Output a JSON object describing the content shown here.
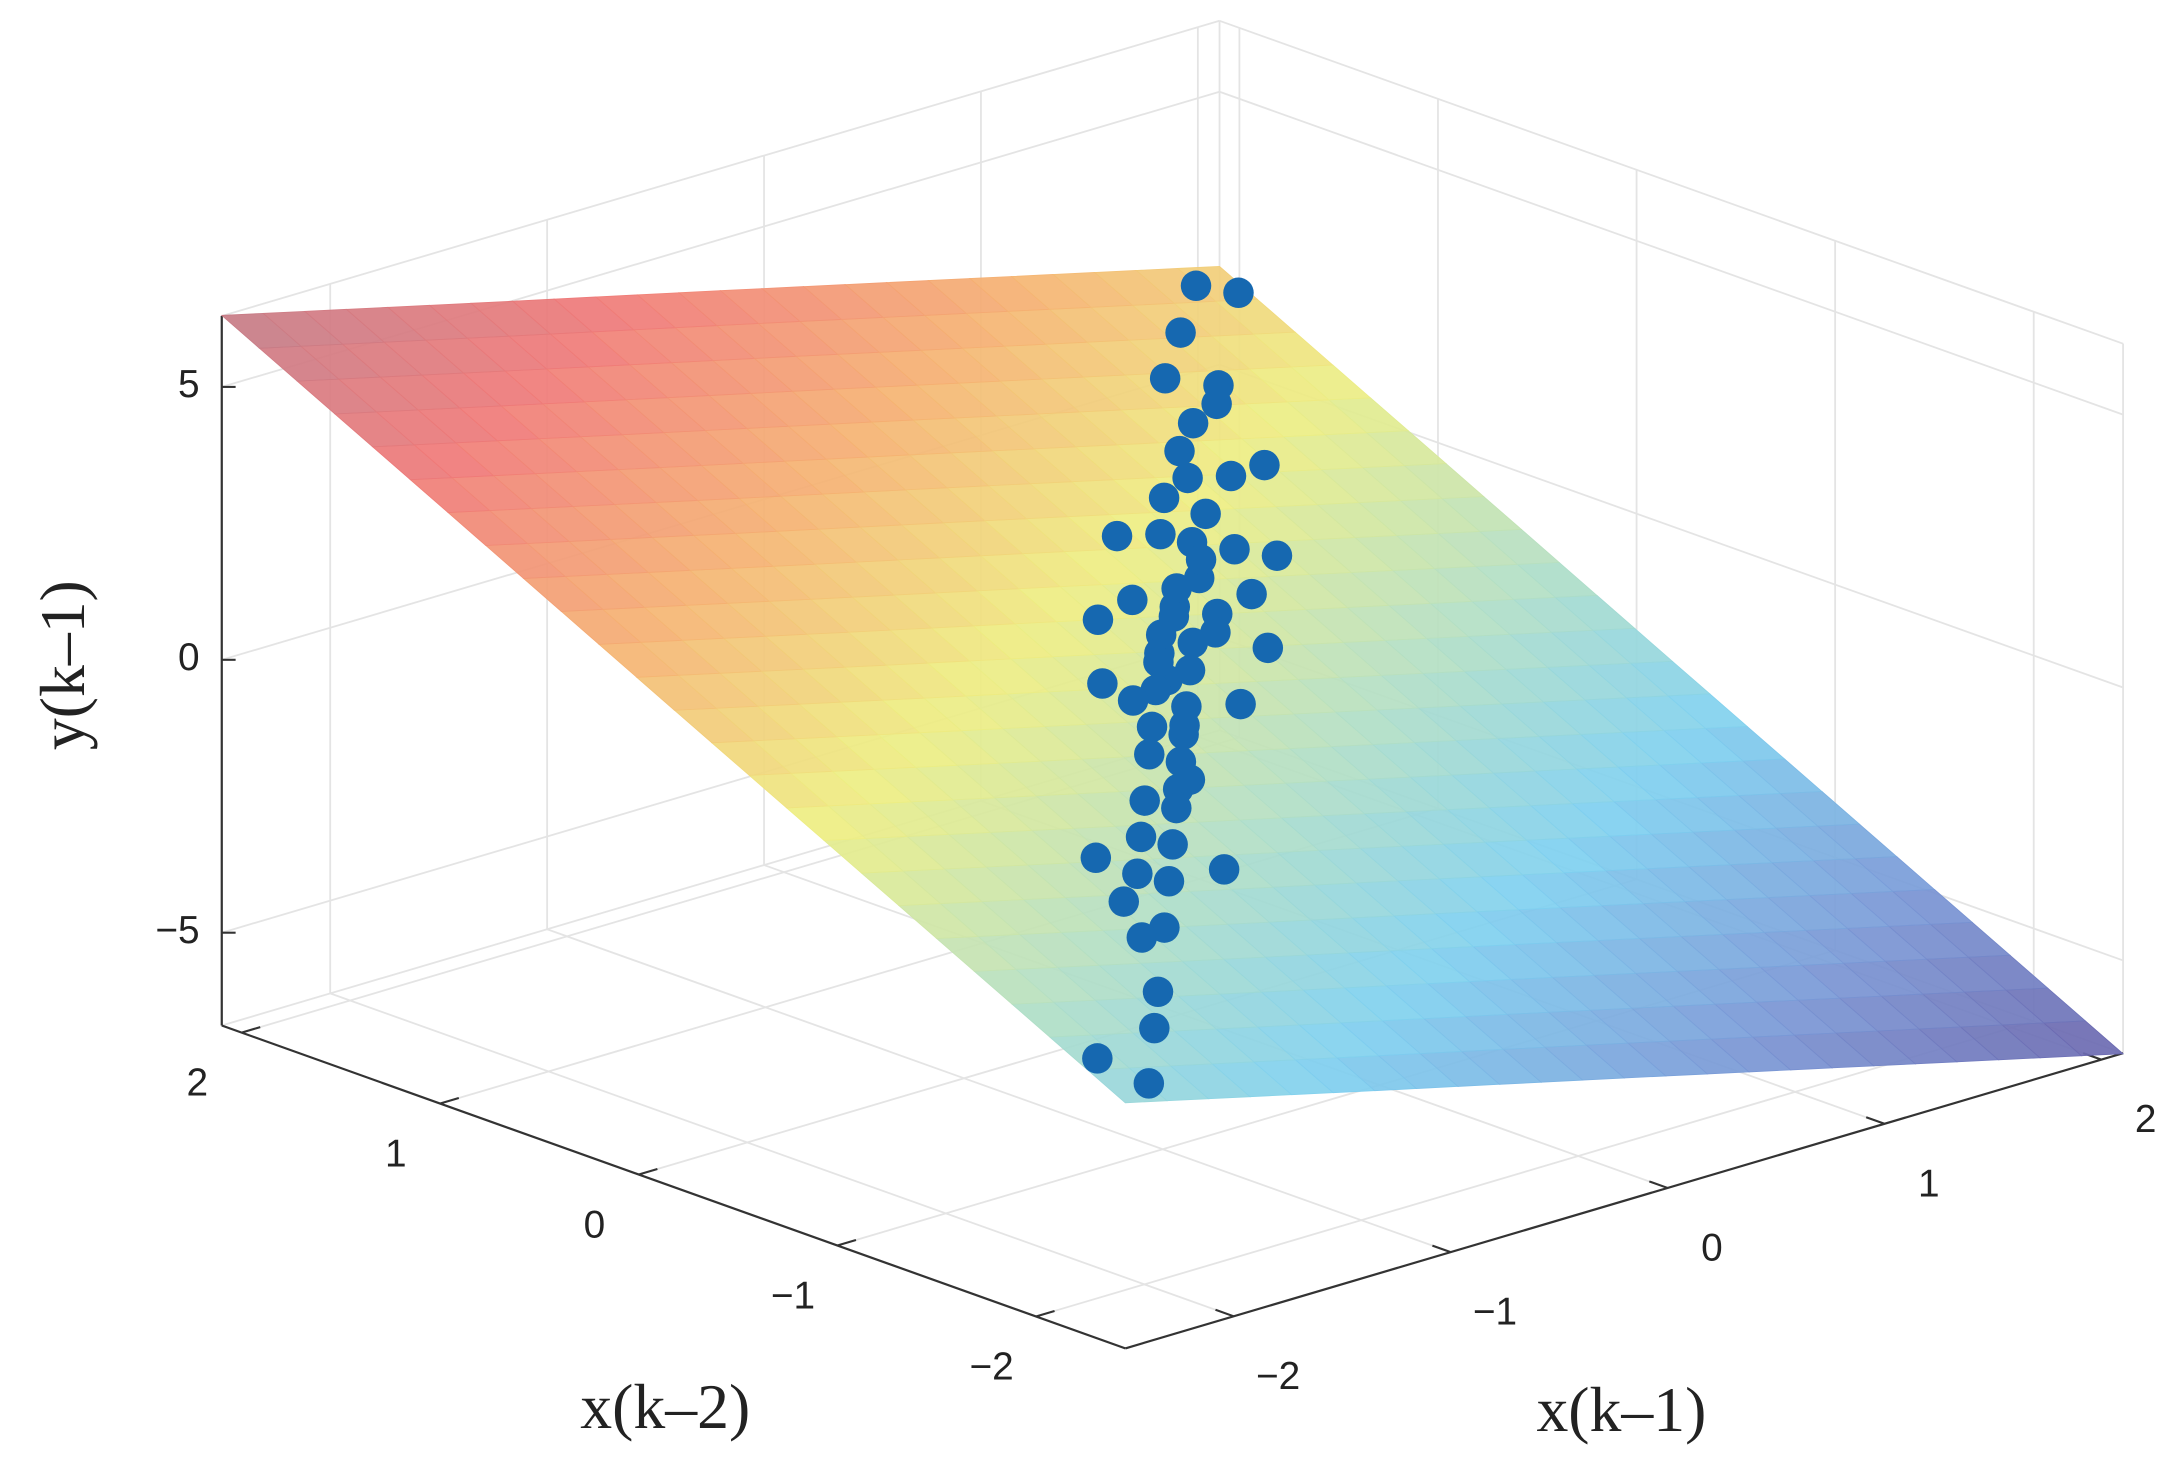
{
  "chart_data": {
    "type": "surface3d",
    "xlabel": "x(k–1)",
    "ylabel": "x(k–2)",
    "zlabel": "y(k–1)",
    "xlim": [
      -2.5,
      2.1
    ],
    "ylim": [
      -2.45,
      2.1
    ],
    "zlim": [
      -6.7,
      6.3
    ],
    "xticks": [
      {
        "value": -2,
        "label": "−2"
      },
      {
        "value": -1,
        "label": "−1"
      },
      0,
      1,
      2
    ],
    "yticks": [
      {
        "value": -2,
        "label": "−2"
      },
      {
        "value": -1,
        "label": "−1"
      },
      0,
      1,
      2
    ],
    "zticks": [
      {
        "value": -5,
        "label": "−5"
      },
      0,
      5
    ],
    "grid": true,
    "colormap": [
      "#6a64ac",
      "#7a98d6",
      "#7fd0f0",
      "#b8e0c0",
      "#eeee82",
      "#f5b272",
      "#f07a78",
      "#c27c88"
    ],
    "surface": {
      "x": [
        -2.5,
        -1.35,
        -0.2,
        0.95,
        2.1
      ],
      "y": [
        -2.45,
        -1.31,
        -0.18,
        0.96,
        2.1
      ],
      "z": [
        [
          -2.2,
          -3.33,
          -4.45,
          -5.58,
          -6.71
        ],
        [
          -0.07,
          -1.2,
          -2.32,
          -3.45,
          -4.58
        ],
        [
          2.04,
          0.91,
          -0.21,
          -1.34,
          -2.47
        ],
        [
          4.18,
          3.05,
          1.93,
          0.8,
          -0.33
        ],
        [
          6.31,
          5.18,
          4.06,
          2.93,
          1.8
        ]
      ]
    },
    "scatter": {
      "color": "#1668b0",
      "x": [
        2.05,
        1.9,
        1.6,
        1.3,
        1.4,
        1.2,
        1.0,
        1.1,
        0.9,
        0.8,
        0.7,
        0.6,
        0.5,
        0.45,
        0.3,
        0.35,
        0.2,
        0.1,
        0.15,
        0.0,
        -0.05,
        -0.1,
        -0.2,
        -0.25,
        -0.3,
        -0.4,
        -0.5,
        -0.55,
        -0.65,
        -0.7,
        -0.8,
        -0.9,
        -1.0,
        -1.1,
        -1.2,
        -1.3,
        -1.45,
        -1.6,
        -1.8,
        -2.0,
        -2.3,
        -2.4,
        0.6,
        -0.2,
        0.9,
        -0.5,
        0.3,
        -0.9,
        1.3,
        0.0,
        -1.4,
        0.4,
        0.25,
        -0.15,
        0.55,
        -0.35,
        0.05,
        -0.6,
        0.75,
        -0.45,
        1.5,
        -1.5
      ],
      "y": [
        1.95,
        2.0,
        1.75,
        1.5,
        1.35,
        1.25,
        1.1,
        0.95,
        0.95,
        0.75,
        0.85,
        0.6,
        0.65,
        0.4,
        0.35,
        0.2,
        0.25,
        0.05,
        0.2,
        0.1,
        -0.1,
        0.0,
        -0.15,
        -0.3,
        -0.2,
        -0.45,
        -0.4,
        -0.6,
        -0.55,
        -0.75,
        -0.85,
        -0.8,
        -1.05,
        -1.0,
        -1.25,
        -1.2,
        -1.5,
        -1.55,
        -1.85,
        -2.05,
        -2.35,
        -2.2,
        0.3,
        0.2,
        0.5,
        -0.15,
        0.65,
        -1.2,
        1.0,
        -0.3,
        -1.1,
        0.0,
        0.1,
        -0.05,
        0.5,
        -0.4,
        0.3,
        -0.7,
        0.55,
        -0.25,
        1.45,
        -1.35
      ],
      "z": [
        1.57,
        1.81,
        1.63,
        1.47,
        1.08,
        1.09,
        1.01,
        0.63,
        0.83,
        0.55,
        0.83,
        0.46,
        0.66,
        0.24,
        0.29,
        -0.04,
        0.2,
        -0.08,
        0.15,
        0.12,
        -0.21,
        0.03,
        -0.15,
        -0.38,
        -0.15,
        -0.52,
        -0.33,
        -0.65,
        -0.46,
        -0.78,
        -0.88,
        -0.69,
        -1.05,
        -0.86,
        -1.23,
        -1.04,
        -1.46,
        -1.4,
        -1.77,
        -1.94,
        -2.21,
        -1.83,
        -0.1,
        0.5,
        -0.01,
        0.14,
        0.86,
        -1.43,
        0.53,
        -0.63,
        -0.76,
        -0.46,
        -0.13,
        -0.01,
        0.33,
        -0.48,
        0.44,
        -0.79,
        0.22,
        -0.1,
        1.17,
        -1.12
      ]
    }
  }
}
